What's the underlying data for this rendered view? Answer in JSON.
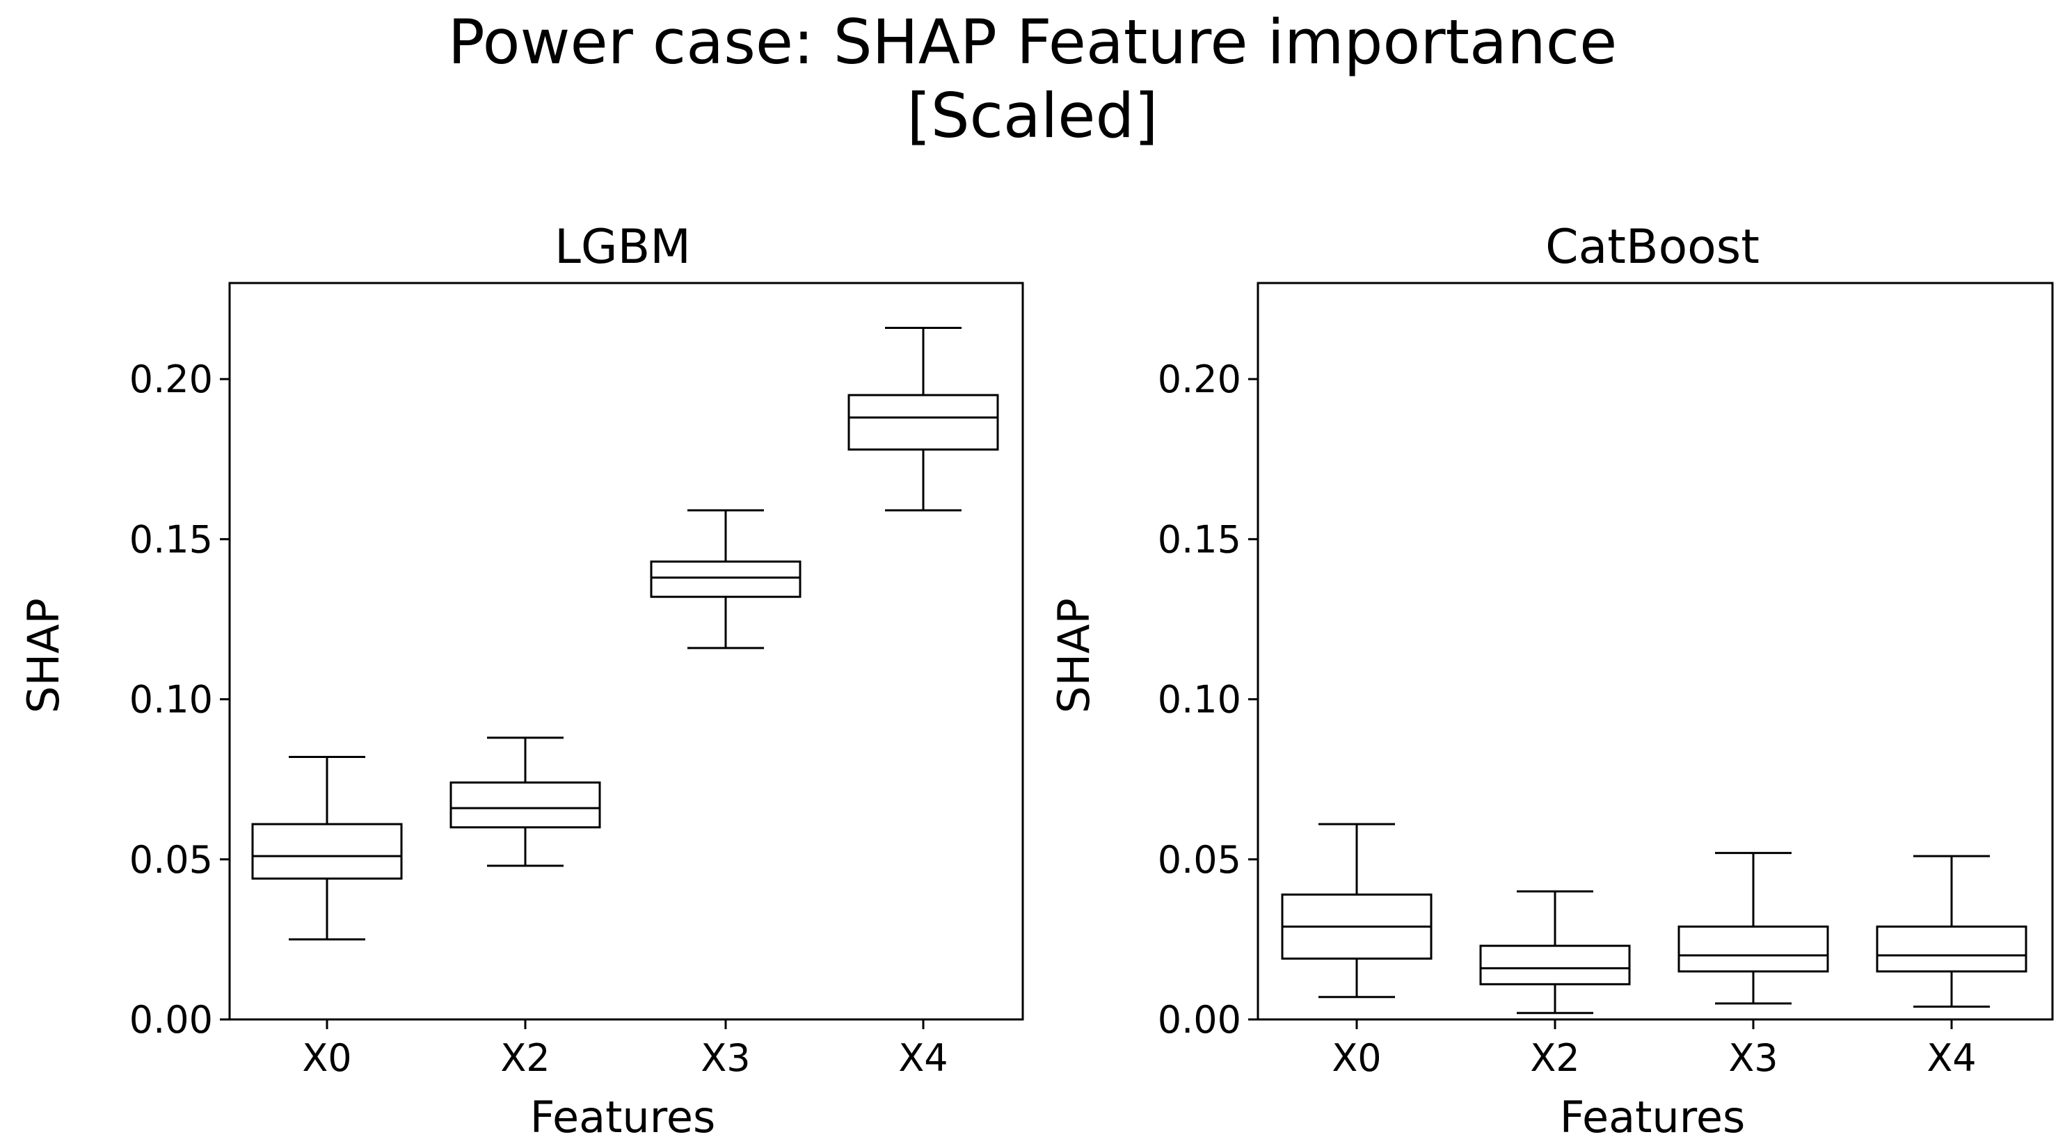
{
  "figure": {
    "title_line1": "Power case: SHAP Feature importance",
    "title_line2": "[Scaled]"
  },
  "chart_data": [
    {
      "type": "box",
      "title": "LGBM",
      "xlabel": "Features",
      "ylabel": "SHAP",
      "ylim": [
        0,
        0.23
      ],
      "yticks": [
        "0.00",
        "0.05",
        "0.10",
        "0.15",
        "0.20"
      ],
      "categories": [
        "X0",
        "X2",
        "X3",
        "X4"
      ],
      "boxes": [
        {
          "category": "X0",
          "whisker_low": 0.025,
          "q1": 0.044,
          "median": 0.051,
          "q3": 0.061,
          "whisker_high": 0.082
        },
        {
          "category": "X2",
          "whisker_low": 0.048,
          "q1": 0.06,
          "median": 0.066,
          "q3": 0.074,
          "whisker_high": 0.088
        },
        {
          "category": "X3",
          "whisker_low": 0.116,
          "q1": 0.132,
          "median": 0.138,
          "q3": 0.143,
          "whisker_high": 0.159
        },
        {
          "category": "X4",
          "whisker_low": 0.159,
          "q1": 0.178,
          "median": 0.188,
          "q3": 0.195,
          "whisker_high": 0.216
        }
      ]
    },
    {
      "type": "box",
      "title": "CatBoost",
      "xlabel": "Features",
      "ylabel": "SHAP",
      "ylim": [
        0,
        0.23
      ],
      "yticks": [
        "0.00",
        "0.05",
        "0.10",
        "0.15",
        "0.20"
      ],
      "categories": [
        "X0",
        "X2",
        "X3",
        "X4"
      ],
      "boxes": [
        {
          "category": "X0",
          "whisker_low": 0.007,
          "q1": 0.019,
          "median": 0.029,
          "q3": 0.039,
          "whisker_high": 0.061
        },
        {
          "category": "X2",
          "whisker_low": 0.002,
          "q1": 0.011,
          "median": 0.016,
          "q3": 0.023,
          "whisker_high": 0.04
        },
        {
          "category": "X3",
          "whisker_low": 0.005,
          "q1": 0.015,
          "median": 0.02,
          "q3": 0.029,
          "whisker_high": 0.052
        },
        {
          "category": "X4",
          "whisker_low": 0.004,
          "q1": 0.015,
          "median": 0.02,
          "q3": 0.029,
          "whisker_high": 0.051
        }
      ]
    }
  ]
}
